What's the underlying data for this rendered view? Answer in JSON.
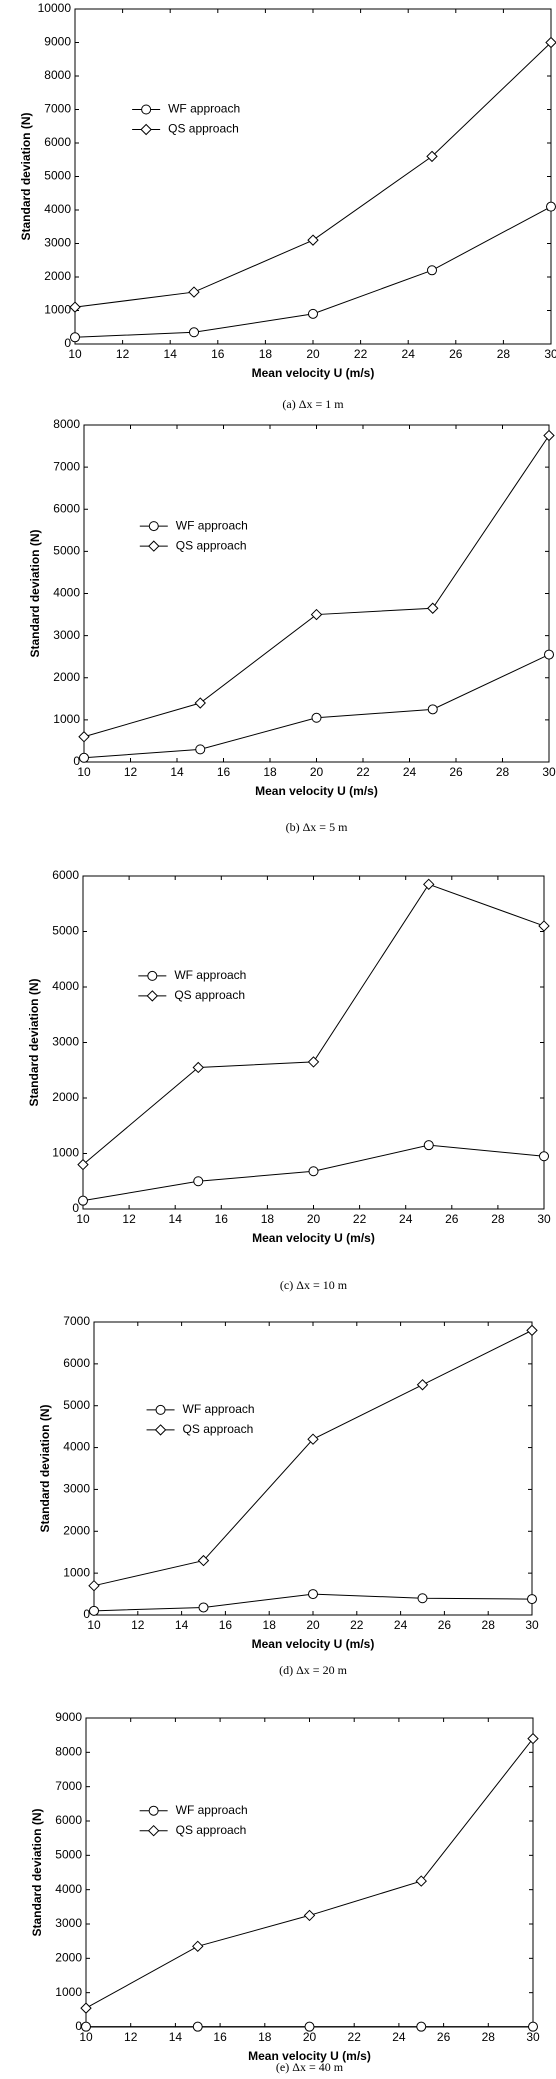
{
  "chart_data": [
    {
      "type": "line",
      "caption": "(a)  Δx = 1 m",
      "x_label": "Mean velocity U (m/s)",
      "y_label": "Standard deviation (N)",
      "x": [
        10,
        15,
        20,
        25,
        30
      ],
      "xlim": [
        10,
        30
      ],
      "xticks": [
        10,
        12,
        14,
        16,
        18,
        20,
        22,
        24,
        26,
        28,
        30
      ],
      "ylim": [
        0,
        10000
      ],
      "yticks": [
        0,
        1000,
        2000,
        3000,
        4000,
        5000,
        6000,
        7000,
        8000,
        9000,
        10000
      ],
      "legend": "upper left",
      "series": [
        {
          "name": "WF approach",
          "color": "#000000",
          "marker": "circle",
          "values": [
            200,
            350,
            900,
            2200,
            4100
          ]
        },
        {
          "name": "QS approach",
          "color": "#000000",
          "marker": "diamond",
          "values": [
            1100,
            1550,
            3100,
            5600,
            9000
          ]
        }
      ]
    },
    {
      "type": "line",
      "caption": "(b)  Δx = 5 m",
      "x_label": "Mean velocity U (m/s)",
      "y_label": "Standard deviation (N)",
      "x": [
        10,
        15,
        20,
        25,
        30
      ],
      "xlim": [
        10,
        30
      ],
      "xticks": [
        10,
        12,
        14,
        16,
        18,
        20,
        22,
        24,
        26,
        28,
        30
      ],
      "ylim": [
        0,
        8000
      ],
      "yticks": [
        0,
        1000,
        2000,
        3000,
        4000,
        5000,
        6000,
        7000,
        8000
      ],
      "legend": "upper left",
      "series": [
        {
          "name": "WF approach",
          "color": "#000000",
          "marker": "circle",
          "values": [
            100,
            300,
            1050,
            1250,
            2550
          ]
        },
        {
          "name": "QS approach",
          "color": "#000000",
          "marker": "diamond",
          "values": [
            600,
            1400,
            3500,
            3650,
            7750
          ]
        }
      ]
    },
    {
      "type": "line",
      "caption": "(c)  Δx = 10 m",
      "x_label": "Mean velocity U (m/s)",
      "y_label": "Standard deviation (N)",
      "x": [
        10,
        15,
        20,
        25,
        30
      ],
      "xlim": [
        10,
        30
      ],
      "xticks": [
        10,
        12,
        14,
        16,
        18,
        20,
        22,
        24,
        26,
        28,
        30
      ],
      "ylim": [
        0,
        6000
      ],
      "yticks": [
        0,
        1000,
        2000,
        3000,
        4000,
        5000,
        6000
      ],
      "legend": "upper left",
      "series": [
        {
          "name": "WF approach",
          "color": "#000000",
          "marker": "circle",
          "values": [
            150,
            500,
            680,
            1150,
            950
          ]
        },
        {
          "name": "QS approach",
          "color": "#000000",
          "marker": "diamond",
          "values": [
            800,
            2550,
            2650,
            5850,
            5100
          ]
        }
      ]
    },
    {
      "type": "line",
      "caption": "(d)  Δx = 20 m",
      "x_label": "Mean velocity U (m/s)",
      "y_label": "Standard deviation (N)",
      "x": [
        10,
        15,
        20,
        25,
        30
      ],
      "xlim": [
        10,
        30
      ],
      "xticks": [
        10,
        12,
        14,
        16,
        18,
        20,
        22,
        24,
        26,
        28,
        30
      ],
      "ylim": [
        0,
        7000
      ],
      "yticks": [
        0,
        1000,
        2000,
        3000,
        4000,
        5000,
        6000,
        7000
      ],
      "legend": "upper left",
      "series": [
        {
          "name": "WF approach",
          "color": "#000000",
          "marker": "circle",
          "values": [
            100,
            180,
            500,
            400,
            380
          ]
        },
        {
          "name": "QS approach",
          "color": "#000000",
          "marker": "diamond",
          "values": [
            700,
            1300,
            4200,
            5500,
            6800
          ]
        }
      ]
    },
    {
      "type": "line",
      "caption": "(e)  Δx = 40 m",
      "x_label": "Mean velocity U (m/s)",
      "y_label": "Standard deviation (N)",
      "x": [
        10,
        15,
        20,
        25,
        30
      ],
      "xlim": [
        10,
        30
      ],
      "xticks": [
        10,
        12,
        14,
        16,
        18,
        20,
        22,
        24,
        26,
        28,
        30
      ],
      "ylim": [
        0,
        9000
      ],
      "yticks": [
        0,
        1000,
        2000,
        3000,
        4000,
        5000,
        6000,
        7000,
        8000,
        9000
      ],
      "legend": "upper left",
      "series": [
        {
          "name": "WF approach",
          "color": "#000000",
          "marker": "circle",
          "values": [
            10,
            10,
            10,
            10,
            10
          ]
        },
        {
          "name": "QS approach",
          "color": "#000000",
          "marker": "diamond",
          "values": [
            550,
            2350,
            3250,
            4250,
            8400
          ]
        }
      ]
    }
  ]
}
